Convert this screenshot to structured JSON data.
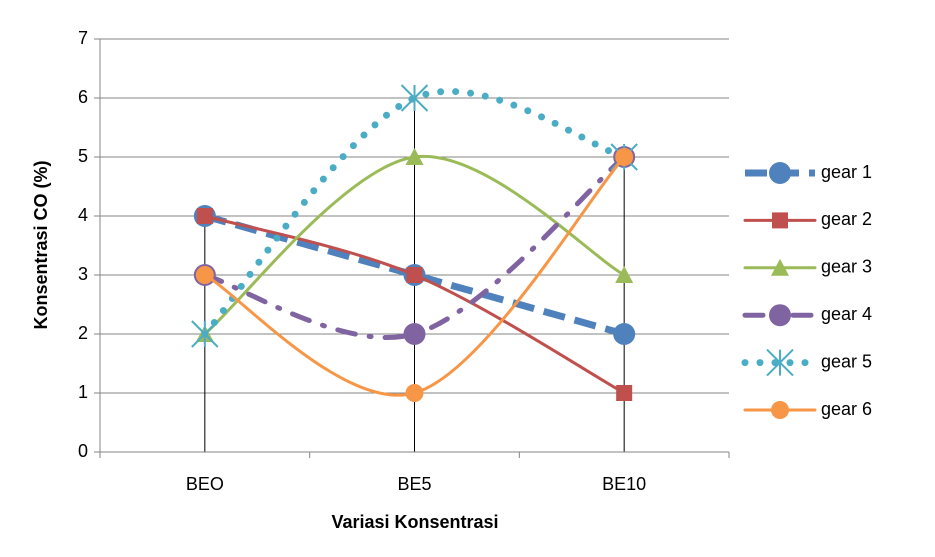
{
  "chart_data": {
    "type": "line",
    "x_label": "Variasi Konsentrasi",
    "y_label": "Konsentrasi CO (%)",
    "categories": [
      "BEO",
      "BE5",
      "BE10"
    ],
    "ylim": [
      0,
      7
    ],
    "yticks": [
      0,
      1,
      2,
      3,
      4,
      5,
      6,
      7
    ],
    "grid": true,
    "legend": "right",
    "series": [
      {
        "name": "gear 1",
        "color": "#4f81bd",
        "values": [
          4,
          3,
          2
        ],
        "marker": "circle",
        "line_style": "dashed",
        "smooth": false
      },
      {
        "name": "gear 2",
        "color": "#c0504d",
        "values": [
          4,
          3,
          1
        ],
        "marker": "square",
        "line_style": "solid",
        "smooth": true
      },
      {
        "name": "gear 3",
        "color": "#9bbb59",
        "values": [
          2,
          5,
          3
        ],
        "marker": "triangle",
        "line_style": "solid",
        "smooth": true
      },
      {
        "name": "gear 4",
        "color": "#8064a2",
        "values": [
          3,
          2,
          5
        ],
        "marker": "circle",
        "line_style": "dashdot",
        "smooth": true
      },
      {
        "name": "gear 5",
        "color": "#4bacc6",
        "values": [
          2,
          6,
          5
        ],
        "marker": "star",
        "line_style": "dotted",
        "smooth": true
      },
      {
        "name": "gear 6",
        "color": "#f79646",
        "values": [
          3,
          1,
          5
        ],
        "marker": "circle",
        "line_style": "solid",
        "smooth": true
      }
    ]
  }
}
